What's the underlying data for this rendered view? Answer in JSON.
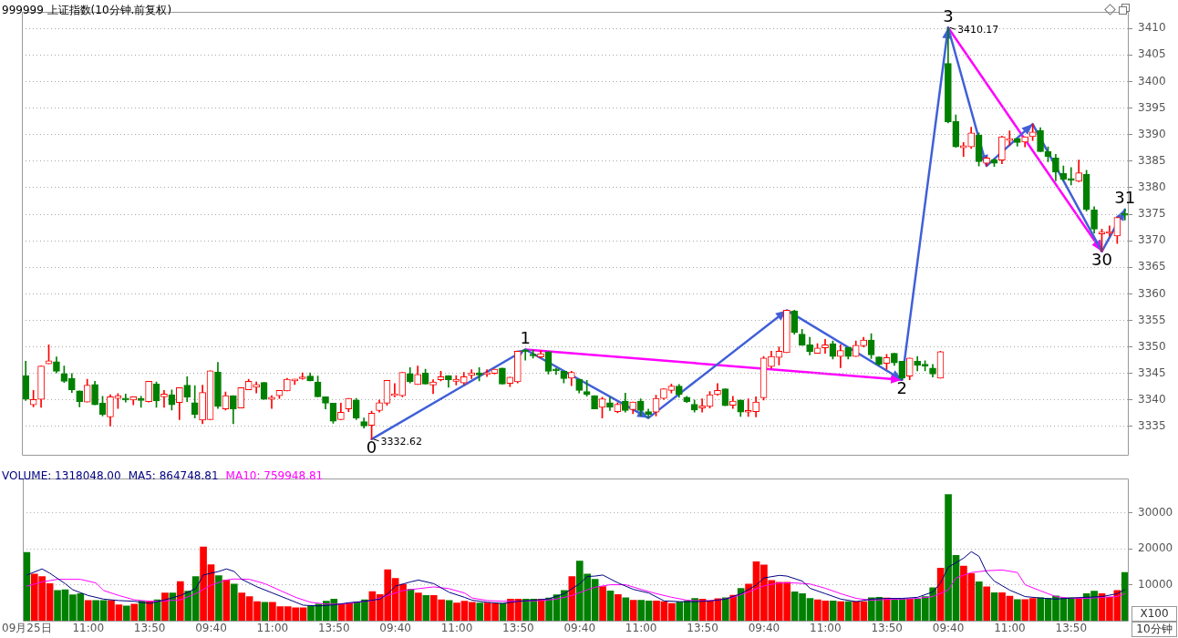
{
  "chart_data": [
    {
      "type": "candlestick",
      "title": "999999 上证指数(10分钟.前复权)",
      "categories": [
        null,
        null,
        null,
        null,
        null,
        null,
        null,
        null,
        null,
        null,
        null,
        null,
        null,
        null,
        null,
        null,
        null,
        null,
        null,
        null,
        null,
        null,
        null,
        null,
        null,
        null,
        null,
        null,
        null,
        null,
        null,
        null,
        null,
        null,
        null,
        null,
        null,
        null,
        null,
        null,
        null,
        null,
        null,
        null,
        null,
        null,
        null,
        null,
        null,
        null,
        null,
        null,
        null,
        null,
        null,
        null,
        null,
        null,
        null,
        null,
        null,
        null,
        null,
        null,
        null,
        null,
        null,
        null,
        null,
        null,
        null,
        null,
        null,
        null,
        null,
        null,
        null,
        null,
        null,
        null,
        null,
        null,
        null,
        null,
        null,
        null,
        null,
        null,
        null,
        null,
        null,
        null,
        null,
        null,
        null,
        null,
        null,
        null,
        null,
        null,
        null,
        null,
        null,
        null,
        null,
        null,
        null,
        null,
        null,
        null,
        null,
        null,
        null,
        null,
        null,
        null,
        null,
        null,
        null,
        null,
        null,
        null,
        null,
        null,
        null,
        null,
        null,
        null,
        null,
        null,
        null,
        null,
        null,
        null,
        null,
        null,
        null,
        null,
        null,
        null,
        null,
        null,
        null,
        null
      ],
      "ohlc": [
        [
          3344.6,
          3347.3,
          3339.9,
          3340.1
        ],
        [
          3339.1,
          3341.8,
          3338.7,
          3340.1
        ],
        [
          3340.1,
          3346.4,
          3338.6,
          3346.4
        ],
        [
          3346.8,
          3350.4,
          3346.8,
          3347.4
        ],
        [
          3347.2,
          3348.1,
          3345.1,
          3345.4
        ],
        [
          3345.0,
          3346.4,
          3343.3,
          3343.5
        ],
        [
          3344.1,
          3345.0,
          3341.4,
          3341.9
        ],
        [
          3341.7,
          3341.7,
          3338.7,
          3339.7
        ],
        [
          3339.6,
          3343.9,
          3339.6,
          3342.8
        ],
        [
          3342.9,
          3343.5,
          3339.1,
          3339.1
        ],
        [
          3339.4,
          3340.7,
          3337.0,
          3337.3
        ],
        [
          3336.8,
          3341.0,
          3335.1,
          3340.6
        ],
        [
          3340.3,
          3341.2,
          3338.4,
          3340.8
        ],
        [
          3340.3,
          3341.1,
          3339.6,
          3340.0
        ],
        [
          3340.0,
          3340.6,
          3339.1,
          3340.6
        ],
        [
          3340.3,
          3340.7,
          3338.6,
          3339.9
        ],
        [
          3339.7,
          3343.5,
          3339.6,
          3343.5
        ],
        [
          3343.0,
          3343.4,
          3338.6,
          3339.8
        ],
        [
          3340.6,
          3341.8,
          3338.6,
          3341.1
        ],
        [
          3341.0,
          3341.9,
          3338.1,
          3339.1
        ],
        [
          3339.5,
          3342.3,
          3336.3,
          3342.3
        ],
        [
          3342.8,
          3344.4,
          3339.7,
          3340.5
        ],
        [
          3339.5,
          3342.7,
          3336.6,
          3337.3
        ],
        [
          3336.2,
          3342.8,
          3335.5,
          3341.4
        ],
        [
          3336.3,
          3345.5,
          3336.3,
          3345.5
        ],
        [
          3345.3,
          3347.1,
          3338.4,
          3338.8
        ],
        [
          3338.3,
          3341.5,
          3338.1,
          3340.8
        ],
        [
          3340.8,
          3340.8,
          3335.5,
          3338.3
        ],
        [
          3338.5,
          3342.3,
          3338.5,
          3342.3
        ],
        [
          3341.9,
          3343.9,
          3341.9,
          3343.5
        ],
        [
          3342.4,
          3343.4,
          3341.3,
          3342.9
        ],
        [
          3343.3,
          3343.3,
          3340.1,
          3340.1
        ],
        [
          3340.1,
          3340.8,
          3338.4,
          3340.5
        ],
        [
          3340.8,
          3341.8,
          3340.3,
          3341.8
        ],
        [
          3341.7,
          3344.1,
          3341.7,
          3343.9
        ],
        [
          3343.6,
          3343.9,
          3342.9,
          3343.9
        ],
        [
          3344.0,
          3345.1,
          3343.9,
          3344.3
        ],
        [
          3344.5,
          3345.1,
          3343.6,
          3343.6
        ],
        [
          3343.4,
          3344.5,
          3340.6,
          3340.6
        ],
        [
          3340.6,
          3340.6,
          3338.3,
          3339.4
        ],
        [
          3339.4,
          3339.4,
          3335.6,
          3336.0
        ],
        [
          3336.3,
          3339.4,
          3336.3,
          3337.7
        ],
        [
          3338.3,
          3340.3,
          3337.8,
          3340.3
        ],
        [
          3340.0,
          3340.3,
          3336.3,
          3336.6
        ],
        [
          3335.9,
          3336.6,
          3334.7,
          3335.1
        ],
        [
          3335.2,
          3337.9,
          3332.62,
          3337.5
        ],
        [
          3338.0,
          3340.0,
          3337.7,
          3339.5
        ],
        [
          3339.4,
          3343.7,
          3339.0,
          3343.7
        ],
        [
          3340.8,
          3343.1,
          3340.6,
          3341.0
        ],
        [
          3340.8,
          3345.2,
          3340.6,
          3345.2
        ],
        [
          3345.0,
          3346.1,
          3343.2,
          3343.4
        ],
        [
          3342.9,
          3346.4,
          3342.9,
          3344.8
        ],
        [
          3345.1,
          3345.8,
          3343.0,
          3343.0
        ],
        [
          3342.8,
          3343.8,
          3341.2,
          3343.4
        ],
        [
          3343.8,
          3345.4,
          3343.6,
          3344.4
        ],
        [
          3344.6,
          3344.6,
          3342.4,
          3343.8
        ],
        [
          3343.5,
          3344.6,
          3342.8,
          3343.9
        ],
        [
          3343.2,
          3345.2,
          3342.9,
          3344.4
        ],
        [
          3344.6,
          3345.7,
          3344.0,
          3345.1
        ],
        [
          3345.1,
          3346.1,
          3343.6,
          3344.7
        ],
        [
          3344.8,
          3345.7,
          3344.4,
          3345.1
        ],
        [
          3345.0,
          3345.8,
          3344.9,
          3345.8
        ],
        [
          3346.0,
          3346.0,
          3343.0,
          3343.0
        ],
        [
          3343.1,
          3344.3,
          3342.5,
          3344.3
        ],
        [
          3343.4,
          3349.2,
          3343.2,
          3349.2
        ],
        [
          3349.3,
          3349.5,
          3347.5,
          3349.1
        ],
        [
          3348.4,
          3349.4,
          3347.9,
          3348.3
        ],
        [
          3348.1,
          3349.3,
          3347.9,
          3348.7
        ],
        [
          3349.1,
          3349.1,
          3344.9,
          3345.4
        ],
        [
          3345.7,
          3346.0,
          3344.8,
          3345.5
        ],
        [
          3345.4,
          3345.4,
          3343.2,
          3344.0
        ],
        [
          3344.1,
          3345.4,
          3342.7,
          3345.2
        ],
        [
          3343.9,
          3343.9,
          3341.3,
          3341.8
        ],
        [
          3341.6,
          3343.7,
          3340.7,
          3341.0
        ],
        [
          3340.8,
          3340.8,
          3338.3,
          3338.3
        ],
        [
          3338.6,
          3340.5,
          3336.6,
          3340.2
        ],
        [
          3339.5,
          3340.5,
          3338.0,
          3338.6
        ],
        [
          3337.8,
          3339.5,
          3337.6,
          3339.2
        ],
        [
          3339.8,
          3341.3,
          3337.7,
          3338.0
        ],
        [
          3338.2,
          3339.6,
          3337.4,
          3339.6
        ],
        [
          3339.8,
          3340.2,
          3337.0,
          3338.0
        ],
        [
          3337.8,
          3338.3,
          3336.6,
          3337.3
        ],
        [
          3337.7,
          3340.9,
          3337.0,
          3340.3
        ],
        [
          3340.3,
          3342.1,
          3340.1,
          3342.1
        ],
        [
          3341.8,
          3343.0,
          3341.3,
          3342.6
        ],
        [
          3342.6,
          3342.9,
          3340.5,
          3341.0
        ],
        [
          3340.5,
          3340.7,
          3339.5,
          3339.7
        ],
        [
          3339.2,
          3340.0,
          3337.7,
          3338.1
        ],
        [
          3338.5,
          3340.2,
          3337.7,
          3338.9
        ],
        [
          3338.8,
          3341.6,
          3338.5,
          3341.0
        ],
        [
          3341.0,
          3343.1,
          3340.9,
          3341.8
        ],
        [
          3342.1,
          3342.1,
          3338.9,
          3338.9
        ],
        [
          3339.0,
          3340.7,
          3338.4,
          3339.8
        ],
        [
          3340.0,
          3340.0,
          3336.9,
          3337.7
        ],
        [
          3337.7,
          3340.2,
          3336.9,
          3338.0
        ],
        [
          3337.8,
          3340.6,
          3336.8,
          3339.6
        ],
        [
          3340.4,
          3348.2,
          3340.0,
          3347.9
        ],
        [
          3346.3,
          3349.2,
          3346.0,
          3348.2
        ],
        [
          3348.0,
          3350.0,
          3346.6,
          3349.2
        ],
        [
          3348.9,
          3356.9,
          3348.9,
          3356.9
        ],
        [
          3356.8,
          3356.9,
          3352.4,
          3352.7
        ],
        [
          3352.4,
          3353.3,
          3350.3,
          3350.3
        ],
        [
          3350.4,
          3351.8,
          3348.5,
          3349.1
        ],
        [
          3348.8,
          3350.6,
          3348.8,
          3349.8
        ],
        [
          3349.8,
          3351.4,
          3348.8,
          3350.4
        ],
        [
          3350.6,
          3351.1,
          3347.7,
          3348.2
        ],
        [
          3348.2,
          3350.4,
          3346.1,
          3349.3
        ],
        [
          3349.9,
          3349.9,
          3347.7,
          3348.2
        ],
        [
          3348.2,
          3351.1,
          3348.2,
          3350.3
        ],
        [
          3350.2,
          3351.8,
          3350.0,
          3351.3
        ],
        [
          3351.3,
          3352.5,
          3347.8,
          3348.5
        ],
        [
          3348.1,
          3348.1,
          3346.5,
          3346.7
        ],
        [
          3346.9,
          3348.6,
          3345.8,
          3348.0
        ],
        [
          3348.8,
          3348.8,
          3346.5,
          3347.0
        ],
        [
          3347.3,
          3347.3,
          3343.8,
          3344.1
        ],
        [
          3344.5,
          3347.9,
          3343.8,
          3347.9
        ],
        [
          3347.3,
          3348.2,
          3345.5,
          3346.5
        ],
        [
          3346.5,
          3347.4,
          3345.5,
          3346.4
        ],
        [
          3346.0,
          3346.7,
          3344.3,
          3344.9
        ],
        [
          3344.1,
          3349.2,
          3344.1,
          3349.1
        ],
        [
          3403.4,
          3410.17,
          3392.2,
          3392.4
        ],
        [
          3392.5,
          3393.7,
          3387.6,
          3387.7
        ],
        [
          3387.5,
          3388.5,
          3385.9,
          3387.9
        ],
        [
          3387.7,
          3391.4,
          3387.4,
          3390.3
        ],
        [
          3389.9,
          3390.3,
          3384.1,
          3384.9
        ],
        [
          3384.6,
          3385.8,
          3384.1,
          3385.6
        ],
        [
          3385.3,
          3385.4,
          3384.0,
          3384.6
        ],
        [
          3385.2,
          3389.7,
          3384.5,
          3389.6
        ],
        [
          3388.9,
          3390.7,
          3388.0,
          3389.1
        ],
        [
          3389.3,
          3389.3,
          3387.8,
          3388.5
        ],
        [
          3388.6,
          3389.6,
          3387.7,
          3389.6
        ],
        [
          3389.6,
          3392.0,
          3388.9,
          3390.5
        ],
        [
          3390.8,
          3391.3,
          3386.8,
          3386.8
        ],
        [
          3386.8,
          3387.7,
          3384.9,
          3385.9
        ],
        [
          3385.6,
          3386.3,
          3381.3,
          3382.9
        ],
        [
          3382.7,
          3384.1,
          3381.3,
          3381.6
        ],
        [
          3381.5,
          3383.8,
          3380.5,
          3381.4
        ],
        [
          3381.2,
          3385.2,
          3381.1,
          3382.8
        ],
        [
          3382.5,
          3383.3,
          3375.6,
          3375.9
        ],
        [
          3375.8,
          3376.4,
          3371.4,
          3372.2
        ],
        [
          3371.3,
          3372.2,
          3368.0,
          3371.4
        ],
        [
          3371.4,
          3372.8,
          3370.9,
          3371.7
        ],
        [
          3370.9,
          3374.4,
          3369.5,
          3374.4
        ],
        [
          3374.9,
          3375.9,
          3373.9,
          3374.8
        ]
      ],
      "ylim": [
        3329.7,
        3413.1
      ],
      "yticks": [
        3335,
        3340,
        3345,
        3350,
        3355,
        3360,
        3365,
        3370,
        3375,
        3380,
        3385,
        3390,
        3395,
        3400,
        3405,
        3410
      ],
      "grid": "y",
      "tick_labels": "y",
      "series": [
        {
          "type": "line",
          "color": "#4060d8",
          "values": [
            null,
            null,
            null,
            null,
            null,
            null,
            null,
            null,
            null,
            null,
            null,
            null,
            null,
            null,
            null,
            null,
            null,
            null,
            null,
            null,
            null,
            null,
            null,
            null,
            null,
            null,
            null,
            null,
            null,
            null,
            null,
            null,
            null,
            null,
            null,
            null,
            null,
            null,
            null,
            null,
            null,
            null,
            null,
            null,
            null,
            3332.62,
            null,
            null,
            null,
            null,
            null,
            null,
            null,
            null,
            null,
            null,
            null,
            null,
            null,
            null,
            null,
            null,
            null,
            null,
            null,
            3349.5,
            null,
            null,
            null,
            null,
            null,
            null,
            null,
            null,
            null,
            null,
            null,
            null,
            null,
            null,
            null,
            3336.6,
            null,
            null,
            null,
            null,
            null,
            null,
            null,
            null,
            null,
            null,
            null,
            null,
            null,
            null,
            null,
            null,
            null,
            3356.9,
            null,
            null,
            null,
            null,
            null,
            null,
            null,
            null,
            null,
            null,
            null,
            null,
            null,
            null,
            3343.8,
            null,
            null,
            null,
            null,
            null,
            3410.17,
            null,
            null,
            null,
            null,
            3384.1,
            null,
            null,
            null,
            null,
            null,
            3392.0,
            null,
            null,
            null,
            null,
            null,
            null,
            null,
            null,
            3368.0,
            null,
            null,
            3375.9
          ]
        }
      ],
      "annotations": [
        {
          "text": "0",
          "y": 3332.62
        },
        "3332.62",
        {
          "text": "1",
          "y": 3349.5
        },
        {
          "text": "2",
          "y": 3343.8
        },
        {
          "text": "3",
          "y": 3410.17
        },
        "3410.17",
        {
          "text": "30",
          "y": 3368.0
        },
        {
          "text": "31",
          "y": 3375.9
        }
      ]
    },
    {
      "type": "bar",
      "title": "VOLUME: 1318048.00",
      "categories": [
        "09月25日",
        null,
        null,
        null,
        null,
        null,
        null,
        null,
        "11:00",
        null,
        null,
        null,
        null,
        null,
        null,
        null,
        "13:50",
        null,
        null,
        null,
        null,
        null,
        null,
        null,
        "09:40",
        null,
        null,
        null,
        null,
        null,
        null,
        null,
        "11:00",
        null,
        null,
        null,
        null,
        null,
        null,
        null,
        "13:50",
        null,
        null,
        null,
        null,
        null,
        null,
        null,
        "09:40",
        null,
        null,
        null,
        null,
        null,
        null,
        null,
        "11:00",
        null,
        null,
        null,
        null,
        null,
        null,
        null,
        "13:50",
        null,
        null,
        null,
        null,
        null,
        null,
        null,
        "09:40",
        null,
        null,
        null,
        null,
        null,
        null,
        null,
        "11:00",
        null,
        null,
        null,
        null,
        null,
        null,
        null,
        "13:50",
        null,
        null,
        null,
        null,
        null,
        null,
        null,
        "09:40",
        null,
        null,
        null,
        null,
        null,
        null,
        null,
        "11:00",
        null,
        null,
        null,
        null,
        null,
        null,
        null,
        "13:50",
        null,
        null,
        null,
        null,
        null,
        null,
        null,
        "09:40",
        null,
        null,
        null,
        null,
        null,
        null,
        null,
        "11:00",
        null,
        null,
        null,
        null,
        null,
        null,
        null,
        "13:50",
        null,
        null,
        null,
        null,
        null,
        null,
        null
      ],
      "ylim": [
        0,
        39500
      ],
      "yticks": [
        10000,
        20000,
        30000
      ],
      "grid": "y",
      "legend": "top left",
      "series": [
        {
          "type": "bar",
          "values": [
            19000,
            13000,
            12300,
            10300,
            8400,
            8600,
            7200,
            7500,
            5600,
            5600,
            5600,
            5600,
            4400,
            4100,
            4600,
            5400,
            5400,
            5800,
            7700,
            7700,
            10900,
            8200,
            12300,
            20500,
            15600,
            12500,
            11300,
            10200,
            7700,
            6700,
            5300,
            5100,
            5100,
            3900,
            3900,
            3600,
            3600,
            4100,
            4600,
            5400,
            6000,
            4600,
            4800,
            5100,
            5800,
            8100,
            7300,
            14200,
            11800,
            10100,
            8700,
            7700,
            7000,
            7000,
            5800,
            5600,
            4900,
            5400,
            5100,
            4900,
            4900,
            4800,
            4800,
            6000,
            6000,
            6000,
            6000,
            6000,
            6300,
            7200,
            8400,
            12300,
            16600,
            13000,
            11500,
            9500,
            8300,
            7300,
            6400,
            5700,
            5700,
            5500,
            5500,
            5300,
            4800,
            5200,
            5500,
            6200,
            6000,
            5500,
            6100,
            6400,
            7100,
            9000,
            10200,
            16400,
            15500,
            11200,
            10700,
            10700,
            8000,
            7500,
            6200,
            5800,
            5500,
            5500,
            5300,
            5300,
            5300,
            5300,
            6400,
            6500,
            6300,
            5900,
            6000,
            6000,
            6000,
            6700,
            9200,
            14600,
            35100,
            18200,
            15200,
            13100,
            10800,
            9400,
            7800,
            7800,
            6800,
            5900,
            5900,
            6200,
            6400,
            6200,
            6900,
            6400,
            6400,
            6400,
            7500,
            8200,
            7500,
            6500,
            8400,
            13400
          ],
          "colors": [
            "#008000",
            "#ff0000",
            "#ff0000",
            "#ff0000",
            "#008000",
            "#008000",
            "#008000",
            "#008000",
            "#ff0000",
            "#008000",
            "#008000",
            "#ff0000",
            "#ff0000",
            "#008000",
            "#ff0000",
            "#008000",
            "#ff0000",
            "#008000",
            "#ff0000",
            "#008000",
            "#ff0000",
            "#008000",
            "#008000",
            "#ff0000",
            "#ff0000",
            "#008000",
            "#ff0000",
            "#008000",
            "#ff0000",
            "#ff0000",
            "#ff0000",
            "#008000",
            "#ff0000",
            "#ff0000",
            "#ff0000",
            "#ff0000",
            "#ff0000",
            "#008000",
            "#008000",
            "#008000",
            "#008000",
            "#ff0000",
            "#ff0000",
            "#008000",
            "#008000",
            "#ff0000",
            "#ff0000",
            "#ff0000",
            "#ff0000",
            "#ff0000",
            "#008000",
            "#ff0000",
            "#008000",
            "#ff0000",
            "#ff0000",
            "#008000",
            "#ff0000",
            "#ff0000",
            "#ff0000",
            "#008000",
            "#ff0000",
            "#ff0000",
            "#008000",
            "#ff0000",
            "#ff0000",
            "#008000",
            "#008000",
            "#ff0000",
            "#008000",
            "#008000",
            "#008000",
            "#ff0000",
            "#008000",
            "#008000",
            "#008000",
            "#ff0000",
            "#008000",
            "#ff0000",
            "#008000",
            "#ff0000",
            "#008000",
            "#008000",
            "#ff0000",
            "#ff0000",
            "#ff0000",
            "#008000",
            "#008000",
            "#008000",
            "#ff0000",
            "#ff0000",
            "#ff0000",
            "#008000",
            "#ff0000",
            "#008000",
            "#ff0000",
            "#ff0000",
            "#ff0000",
            "#ff0000",
            "#ff0000",
            "#ff0000",
            "#008000",
            "#008000",
            "#008000",
            "#ff0000",
            "#ff0000",
            "#008000",
            "#ff0000",
            "#008000",
            "#ff0000",
            "#ff0000",
            "#008000",
            "#008000",
            "#ff0000",
            "#008000",
            "#008000",
            "#ff0000",
            "#008000",
            "#008000",
            "#008000",
            "#ff0000",
            "#008000",
            "#008000",
            "#ff0000",
            "#ff0000",
            "#008000",
            "#ff0000",
            "#008000",
            "#ff0000",
            "#ff0000",
            "#008000",
            "#ff0000",
            "#ff0000",
            "#008000",
            "#008000",
            "#008000",
            "#008000",
            "#008000",
            "#ff0000",
            "#008000",
            "#008000",
            "#ff0000",
            "#ff0000",
            "#ff0000",
            "#008000"
          ]
        },
        {
          "type": "line",
          "name": "MA5: 864748.81",
          "color": "#000080",
          "values": [
            12700,
            null,
            14400,
            13200,
            null,
            10300,
            8600,
            null,
            7000,
            null,
            6000,
            null,
            5600,
            null,
            5400,
            null,
            4800,
            null,
            5800,
            null,
            7000,
            null,
            8900,
            12700,
            null,
            13700,
            14400,
            13700,
            11500,
            null,
            9400,
            null,
            7700,
            null,
            6000,
            null,
            4300,
            null,
            4100,
            null,
            4400,
            null,
            5000,
            null,
            5400,
            null,
            6000,
            7500,
            9600,
            null,
            10800,
            11300,
            null,
            10300,
            null,
            7900,
            null,
            6500,
            5700,
            null,
            5100,
            null,
            4800,
            null,
            5400,
            null,
            5700,
            null,
            6100,
            null,
            7500,
            null,
            10300,
            12300,
            12400,
            12700,
            null,
            10500,
            null,
            8700,
            null,
            7700,
            null,
            5500,
            null,
            5300,
            null,
            5300,
            null,
            5500,
            null,
            6000,
            null,
            7500,
            null,
            9900,
            11900,
            null,
            12600,
            12400,
            null,
            11000,
            9000,
            null,
            7500,
            null,
            6000,
            null,
            5300,
            null,
            6000,
            null,
            6200,
            null,
            6200,
            null,
            6500,
            null,
            8000,
            10500,
            14900,
            null,
            17400,
            19200,
            17900,
            13400,
            11000,
            null,
            8500,
            null,
            6700,
            null,
            6300,
            null,
            6000,
            null,
            6300,
            null,
            6500,
            null,
            6700,
            null,
            7500,
            8700
          ]
        },
        {
          "type": "line",
          "name": "MA10: 759948.81",
          "color": "#ff00ff",
          "values": [
            9600,
            null,
            10800,
            null,
            11500,
            null,
            null,
            11500,
            null,
            10500,
            8400,
            null,
            7000,
            null,
            5800,
            null,
            5400,
            null,
            5500,
            null,
            5800,
            null,
            7500,
            null,
            9900,
            null,
            11300,
            11600,
            null,
            11500,
            null,
            10300,
            null,
            8400,
            null,
            6500,
            null,
            5100,
            null,
            4600,
            null,
            4600,
            null,
            5100,
            null,
            5600,
            null,
            7000,
            null,
            8400,
            null,
            8900,
            null,
            9400,
            null,
            8900,
            null,
            7700,
            6300,
            null,
            5600,
            null,
            5400,
            null,
            5400,
            null,
            null,
            5600,
            null,
            6000,
            null,
            7000,
            null,
            8600,
            9300,
            null,
            10000,
            null,
            10000,
            null,
            8700,
            null,
            7500,
            null,
            6500,
            null,
            5700,
            null,
            5500,
            null,
            5700,
            null,
            6500,
            null,
            8000,
            null,
            9700,
            null,
            10500,
            null,
            10500,
            null,
            10200,
            null,
            9000,
            null,
            7500,
            null,
            6200,
            null,
            5700,
            null,
            5900,
            null,
            6000,
            null,
            6200,
            null,
            6700,
            null,
            8500,
            11900,
            null,
            13400,
            null,
            13900,
            null,
            14100,
            null,
            13400,
            10000,
            null,
            8300,
            null,
            6700,
            null,
            6200,
            null,
            6200,
            null,
            6500,
            null,
            6700,
            7500
          ]
        }
      ],
      "annotations": [
        "X100",
        "10分钟"
      ]
    }
  ]
}
